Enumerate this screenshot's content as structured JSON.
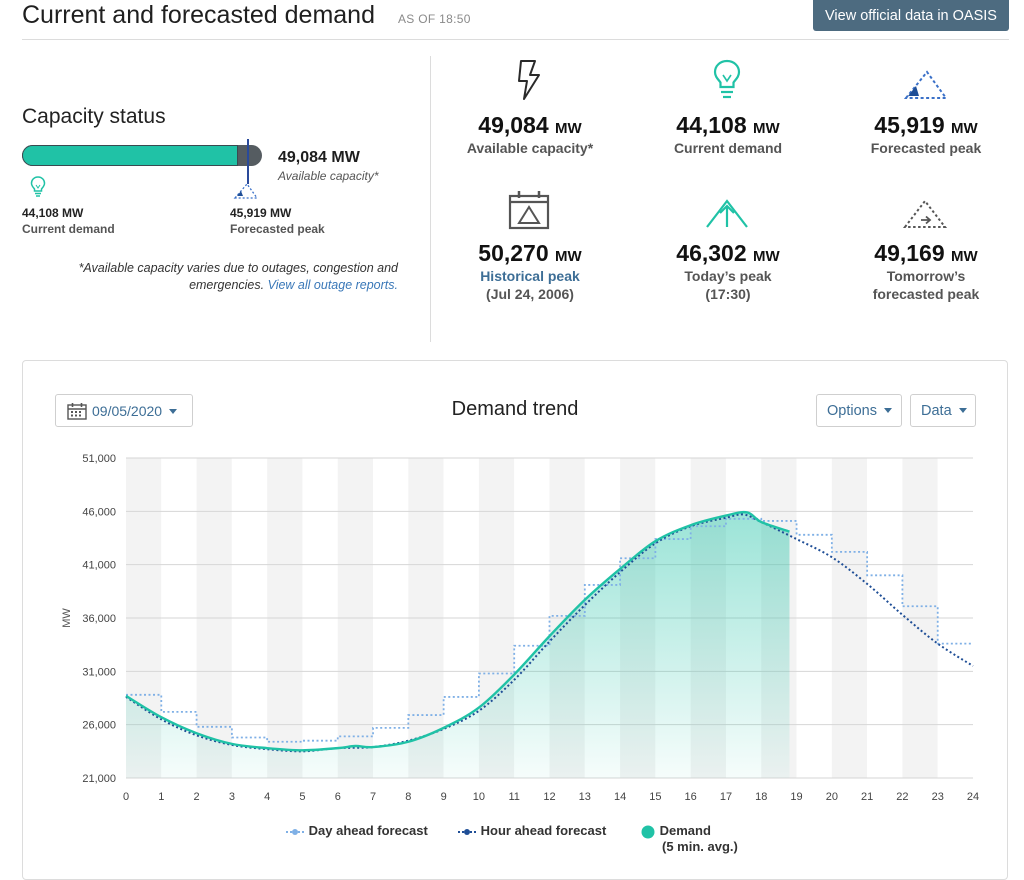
{
  "header": {
    "title": "Current and forecasted demand",
    "as_of": "AS OF 18:50",
    "oasis_button": "View official data in OASIS"
  },
  "capacity": {
    "title": "Capacity status",
    "available_value": "49,084 MW",
    "available_label": "Available capacity*",
    "current_value": "44,108 MW",
    "current_label": "Current demand",
    "forecast_value": "45,919 MW",
    "forecast_label": "Forecasted peak",
    "fill_fraction": 0.899,
    "peak_fraction": 0.936,
    "note": "*Available capacity varies due to outages, congestion and emergencies.",
    "note_link": "View all outage reports."
  },
  "stats": [
    {
      "icon": "lightning-bolt-icon",
      "value": "49,084",
      "unit": "MW",
      "label": "Available capacity*"
    },
    {
      "icon": "lightbulb-icon",
      "value": "44,108",
      "unit": "MW",
      "label": "Current demand"
    },
    {
      "icon": "triangle-peak-icon",
      "value": "45,919",
      "unit": "MW",
      "label": "Forecasted peak"
    },
    {
      "icon": "calendar-peak-icon",
      "value": "50,270",
      "unit": "MW",
      "label": "Historical peak",
      "sublabel": "(Jul 24, 2006)"
    },
    {
      "icon": "arrow-up-triangle-icon",
      "value": "46,302",
      "unit": "MW",
      "label": "Today’s peak",
      "sublabel": "(17:30)"
    },
    {
      "icon": "dotted-triangle-icon",
      "value": "49,169",
      "unit": "MW",
      "label": "Tomorrow’s",
      "sublabel": "forecasted peak"
    }
  ],
  "trend": {
    "date": "09/05/2020",
    "title": "Demand trend",
    "options_label": "Options",
    "data_label": "Data",
    "legend": {
      "day_ahead": "Day ahead forecast",
      "hour_ahead": "Hour ahead forecast",
      "demand": "Demand",
      "demand_sub": "(5 min. avg.)"
    }
  },
  "colors": {
    "accent": "#20c2a6",
    "day_ahead": "#7fb0e6",
    "hour_ahead": "#1f4e96",
    "button": "#4d6b80",
    "link": "#3d6e96"
  },
  "chart_data": {
    "type": "line",
    "title": "Demand trend",
    "ylabel": "MW",
    "xlabel": "",
    "xlim": [
      0,
      24
    ],
    "ylim": [
      21000,
      51000
    ],
    "xticks": [
      "0",
      "1",
      "2",
      "3",
      "4",
      "5",
      "6",
      "7",
      "8",
      "9",
      "10",
      "11",
      "12",
      "13",
      "14",
      "15",
      "16",
      "17",
      "18",
      "19",
      "20",
      "21",
      "22",
      "23",
      "24"
    ],
    "yticks": [
      "21,000",
      "26,000",
      "31,000",
      "36,000",
      "41,000",
      "46,000",
      "51,000"
    ],
    "grid": true,
    "legend_position": "bottom",
    "series": [
      {
        "name": "Day ahead forecast",
        "style": "step-dotted",
        "x": [
          0,
          1,
          2,
          3,
          4,
          5,
          6,
          7,
          8,
          9,
          10,
          11,
          12,
          13,
          14,
          15,
          16,
          17,
          18,
          19,
          20,
          21,
          22,
          23,
          24
        ],
        "y": [
          28800,
          27200,
          25800,
          24800,
          24400,
          24500,
          24900,
          25700,
          26900,
          28600,
          30800,
          33400,
          36200,
          39100,
          41600,
          43400,
          44600,
          45300,
          45100,
          43800,
          42200,
          40000,
          37100,
          33600,
          33600
        ]
      },
      {
        "name": "Hour ahead forecast",
        "style": "dotted",
        "x": [
          0,
          1,
          2,
          3,
          4,
          5,
          6,
          7,
          8,
          9,
          10,
          11,
          12,
          13,
          14,
          15,
          16,
          17,
          17.5,
          18,
          19,
          20,
          21,
          22,
          23,
          24
        ],
        "y": [
          28600,
          26500,
          25000,
          24100,
          23700,
          23500,
          23800,
          23900,
          24500,
          25600,
          27300,
          30200,
          33800,
          37200,
          40300,
          43000,
          44600,
          45400,
          45700,
          45000,
          43400,
          41700,
          39200,
          36300,
          33600,
          31500
        ]
      },
      {
        "name": "Demand",
        "style": "solid-area",
        "x": [
          0,
          1,
          2,
          3,
          4,
          5,
          6,
          6.5,
          7,
          8,
          9,
          10,
          11,
          12,
          13,
          14,
          15,
          16,
          17,
          17.6,
          18,
          18.8
        ],
        "y": [
          28700,
          26700,
          25200,
          24200,
          23800,
          23600,
          23800,
          24000,
          23900,
          24400,
          25700,
          27600,
          30700,
          34300,
          37700,
          40600,
          43200,
          44700,
          45600,
          45900,
          45000,
          44100
        ]
      }
    ]
  }
}
